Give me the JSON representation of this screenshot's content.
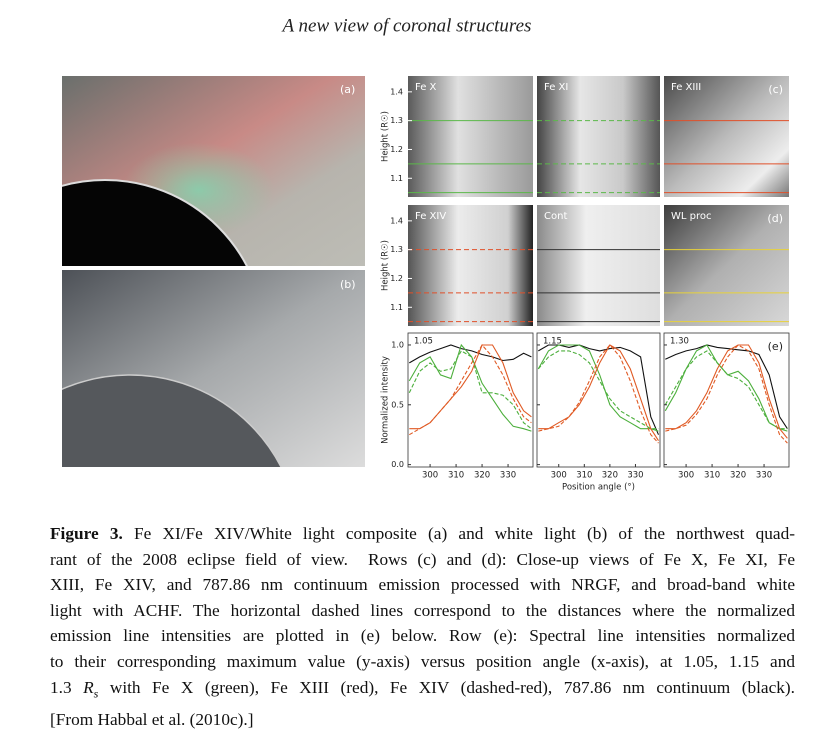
{
  "header": {
    "title": "A new view of coronal structures"
  },
  "left_panels": [
    {
      "tag": "(a)"
    },
    {
      "tag": "(b)"
    }
  ],
  "image_axes": {
    "ylabel": "Height (R☉)",
    "ylim": [
      1.035,
      1.455
    ],
    "yticks": [
      1.4,
      1.3,
      1.2,
      1.1
    ],
    "cut_heights": [
      1.05,
      1.15,
      1.3
    ]
  },
  "image_panels": [
    {
      "label": "Fe X",
      "line_color": "#5bb84a",
      "line_dash": false
    },
    {
      "label": "Fe XI",
      "line_color": "#5bb84a",
      "line_dash": true
    },
    {
      "label": "Fe XIII",
      "tag": "(c)",
      "line_color": "#e0502a",
      "line_dash": false
    },
    {
      "label": "Fe XIV",
      "line_color": "#e0502a",
      "line_dash": true
    },
    {
      "label": "Cont",
      "line_color": "#333333",
      "line_dash": false
    },
    {
      "label": "WL proc",
      "tag": "(d)",
      "line_color": "#e8d23a",
      "line_dash": false
    }
  ],
  "chart_data": [
    {
      "type": "line",
      "label": "1.05",
      "ylabel": "Normalized intensity",
      "xlim": [
        291.5,
        339.6
      ],
      "xticks": [
        300,
        310,
        320,
        330
      ],
      "ylim": [
        -0.02,
        1.1
      ],
      "yticks": [
        {
          "value": 0,
          "label": "0.0"
        },
        0.5,
        {
          "value": 1,
          "label": "1.0"
        }
      ],
      "x": [
        292,
        296,
        300,
        304,
        308,
        312,
        316,
        320,
        324,
        328,
        332,
        336,
        339
      ],
      "series": [
        {
          "color": "#111111",
          "dash": false,
          "values": [
            0.85,
            0.9,
            0.94,
            0.97,
            1.0,
            0.97,
            0.95,
            0.92,
            0.9,
            0.87,
            0.88,
            0.93,
            0.9
          ]
        },
        {
          "color": "#4caf3c",
          "dash": false,
          "values": [
            0.7,
            0.85,
            0.9,
            0.75,
            0.72,
            1.0,
            0.9,
            0.68,
            0.55,
            0.42,
            0.32,
            0.3,
            0.28
          ]
        },
        {
          "color": "#4caf3c",
          "dash": true,
          "values": [
            0.6,
            0.78,
            0.85,
            0.78,
            0.8,
            0.95,
            0.9,
            0.6,
            0.6,
            0.58,
            0.5,
            0.35,
            0.3
          ]
        },
        {
          "color": "#e05a24",
          "dash": false,
          "values": [
            0.3,
            0.3,
            0.35,
            0.45,
            0.55,
            0.65,
            0.78,
            1.0,
            1.0,
            0.85,
            0.6,
            0.45,
            0.4
          ]
        },
        {
          "color": "#e05a24",
          "dash": true,
          "values": [
            0.25,
            0.3,
            0.35,
            0.45,
            0.55,
            0.7,
            0.85,
            1.0,
            0.9,
            0.75,
            0.55,
            0.4,
            0.35
          ]
        }
      ]
    },
    {
      "type": "line",
      "label": "1.15",
      "xlabel": "Position angle (°)",
      "xlim": [
        291.5,
        339.6
      ],
      "xticks": [
        300,
        310,
        320,
        330
      ],
      "ylim": [
        -0.02,
        1.1
      ],
      "yticks": [
        0,
        0.5,
        1
      ],
      "x": [
        292,
        296,
        300,
        304,
        308,
        312,
        316,
        320,
        324,
        328,
        332,
        336,
        339
      ],
      "series": [
        {
          "color": "#111111",
          "dash": false,
          "values": [
            0.95,
            1.0,
            1.0,
            0.98,
            1.0,
            0.97,
            0.95,
            0.97,
            0.98,
            0.95,
            0.9,
            0.4,
            0.25
          ]
        },
        {
          "color": "#4caf3c",
          "dash": false,
          "values": [
            0.8,
            0.95,
            1.0,
            1.0,
            1.0,
            0.95,
            0.75,
            0.5,
            0.4,
            0.35,
            0.3,
            0.3,
            0.28
          ]
        },
        {
          "color": "#4caf3c",
          "dash": true,
          "values": [
            0.8,
            0.9,
            0.95,
            0.95,
            0.92,
            0.85,
            0.7,
            0.55,
            0.45,
            0.4,
            0.35,
            0.3,
            0.3
          ]
        },
        {
          "color": "#e05a24",
          "dash": false,
          "values": [
            0.3,
            0.3,
            0.35,
            0.4,
            0.5,
            0.65,
            0.85,
            1.0,
            0.95,
            0.8,
            0.55,
            0.3,
            0.2
          ]
        },
        {
          "color": "#e05a24",
          "dash": true,
          "values": [
            0.28,
            0.3,
            0.32,
            0.4,
            0.52,
            0.7,
            0.9,
            1.0,
            0.9,
            0.7,
            0.45,
            0.25,
            0.18
          ]
        }
      ]
    },
    {
      "type": "line",
      "label": "1.30",
      "tag": "(e)",
      "xlim": [
        291.5,
        339.6
      ],
      "xticks": [
        300,
        310,
        320,
        330
      ],
      "ylim": [
        -0.02,
        1.1
      ],
      "yticks": [
        0,
        0.5,
        1
      ],
      "x": [
        292,
        296,
        300,
        304,
        308,
        312,
        316,
        320,
        324,
        328,
        332,
        336,
        339
      ],
      "series": [
        {
          "color": "#111111",
          "dash": false,
          "values": [
            0.88,
            0.92,
            0.95,
            0.97,
            1.0,
            0.98,
            0.97,
            0.96,
            0.95,
            0.92,
            0.75,
            0.4,
            0.3
          ]
        },
        {
          "color": "#4caf3c",
          "dash": false,
          "values": [
            0.45,
            0.6,
            0.8,
            0.95,
            1.0,
            0.85,
            0.75,
            0.78,
            0.7,
            0.55,
            0.35,
            0.3,
            0.28
          ]
        },
        {
          "color": "#4caf3c",
          "dash": true,
          "values": [
            0.5,
            0.65,
            0.8,
            0.9,
            0.95,
            0.85,
            0.75,
            0.72,
            0.65,
            0.5,
            0.35,
            0.3,
            0.3
          ]
        },
        {
          "color": "#e05a24",
          "dash": false,
          "values": [
            0.3,
            0.3,
            0.35,
            0.45,
            0.6,
            0.8,
            0.95,
            1.0,
            1.0,
            0.85,
            0.55,
            0.3,
            0.22
          ]
        },
        {
          "color": "#e05a24",
          "dash": true,
          "values": [
            0.28,
            0.3,
            0.33,
            0.42,
            0.55,
            0.75,
            0.9,
            1.0,
            0.95,
            0.8,
            0.5,
            0.25,
            0.18
          ]
        }
      ]
    }
  ],
  "caption": {
    "label": "Figure 3.",
    "line1": "Fe XI/Fe XIV/White light composite (a) and white light (b) of the northwest quad-",
    "line2": "rant of the 2008 eclipse field of view.  Rows (c) and (d): Close-up views of Fe X, Fe XI, Fe",
    "line3": "XIII, Fe XIV, and 787.86 nm continuum emission processed with NRGF, and broad-band white",
    "line4": "light with ACHF. The horizontal dashed lines correspond to the distances where the normalized",
    "line5": "emission line intensities are plotted in (e) below. Row (e): Spectral line intensities normalized",
    "line6": "to their corresponding maximum value (y-axis) versus position angle (x-axis), at 1.05, 1.15 and",
    "line7_pre": "1.3",
    "rs_main": "R",
    "rs_sub": "s",
    "line7_post": "with Fe X (green), Fe XIII (red), Fe XIV (dashed-red), 787.86 nm continuum (black).",
    "line8": "[From Habbal et al. (2010c).]"
  }
}
